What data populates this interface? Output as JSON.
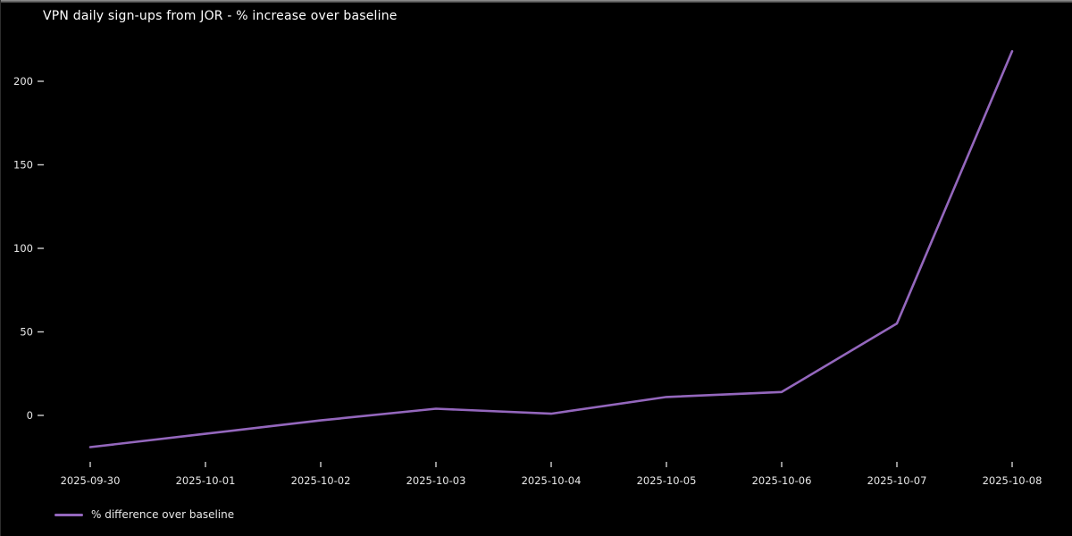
{
  "chart_data": {
    "type": "line",
    "title": "VPN daily sign-ups from JOR - % increase over baseline",
    "categories": [
      "2025-09-30",
      "2025-10-01",
      "2025-10-02",
      "2025-10-03",
      "2025-10-04",
      "2025-10-05",
      "2025-10-06",
      "2025-10-07",
      "2025-10-08"
    ],
    "series": [
      {
        "name": "% difference over baseline",
        "values": [
          -19,
          -11,
          -3,
          4,
          1,
          11,
          14,
          55,
          218
        ]
      }
    ],
    "xlabel": "",
    "ylabel": "",
    "y_ticks": [
      0,
      50,
      100,
      150,
      200
    ],
    "ylim": [
      -30,
      228
    ],
    "grid": false,
    "legend_position": "lower-left",
    "colors": {
      "line": "#9467bd",
      "background": "#000000",
      "text": "#e8e8e8",
      "tick": "#cfcfcf"
    }
  }
}
